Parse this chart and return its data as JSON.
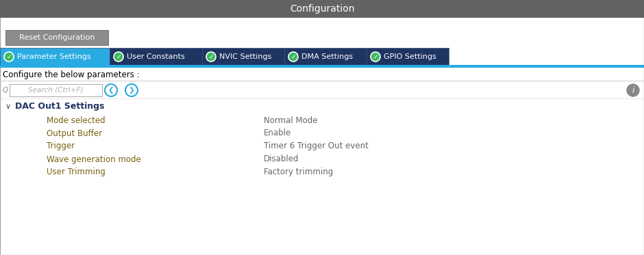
{
  "title": "Configuration",
  "title_bg": "#636363",
  "title_color": "#ffffff",
  "title_fontsize": 10,
  "reset_btn_text": "Reset Configuration",
  "reset_btn_bg": "#8c8c8c",
  "reset_btn_color": "#ffffff",
  "tabs": [
    {
      "label": "Parameter Settings",
      "active": true
    },
    {
      "label": "User Constants",
      "active": false
    },
    {
      "label": "NVIC Settings",
      "active": false
    },
    {
      "label": "DMA Settings",
      "active": false
    },
    {
      "label": "GPIO Settings",
      "active": false
    }
  ],
  "tab_active_bg": "#29abe2",
  "tab_inactive_bg": "#1e3461",
  "tab_text_color": "#ffffff",
  "tab_check_color": "#3dba5f",
  "configure_text": "Configure the below parameters :",
  "configure_color": "#000000",
  "configure_fontsize": 8.5,
  "search_placeholder": "Search (Ctrl+F)",
  "section_header": "DAC Out1 Settings",
  "section_color": "#1e3461",
  "params": [
    {
      "label": "Mode selected",
      "value": "Normal Mode"
    },
    {
      "label": "Output Buffer",
      "value": "Enable"
    },
    {
      "label": "Trigger",
      "value": "Timer 6 Trigger Out event"
    },
    {
      "label": "Wave generation mode",
      "value": "Disabled"
    },
    {
      "label": "User Trimming",
      "value": "Factory trimming"
    }
  ],
  "param_label_color": "#7a6010",
  "param_value_color": "#666666",
  "param_fontsize": 8.5,
  "bg_color": "#f0f0f0",
  "panel_bg": "#ffffff",
  "blue_accent": "#29abe2",
  "dark_navy": "#1e3461",
  "tab_widths": [
    160,
    135,
    120,
    120,
    120
  ]
}
